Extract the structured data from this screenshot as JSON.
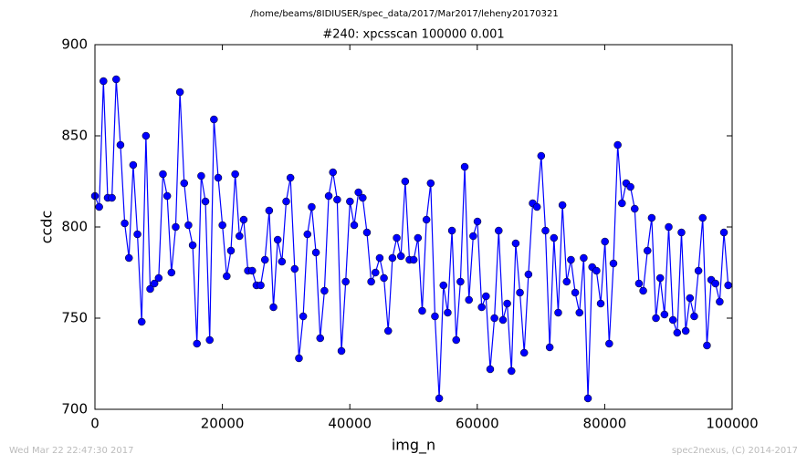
{
  "chart_data": {
    "type": "line",
    "suptitle": "/home/beams/8IDIUSER/spec_data/2017/Mar2017/leheny20170321",
    "title": "#240: xpcsscan 100000 0.001",
    "xlabel": "img_n",
    "ylabel": "ccdc",
    "footer_left": "Wed Mar 22 22:47:30 2017",
    "footer_right": "spec2nexus, (C) 2014-2017",
    "xlim": [
      0,
      100000
    ],
    "ylim": [
      700,
      900
    ],
    "xticks": [
      0,
      20000,
      40000,
      60000,
      80000,
      100000
    ],
    "yticks": [
      700,
      750,
      800,
      850,
      900
    ],
    "grid": false,
    "x": [
      0,
      667,
      1334,
      2001,
      2668,
      3335,
      4002,
      4669,
      5336,
      6003,
      6670,
      7337,
      8004,
      8671,
      9338,
      10005,
      10672,
      11339,
      12006,
      12673,
      13340,
      14007,
      14674,
      15341,
      16008,
      16675,
      17342,
      18009,
      18676,
      19343,
      20010,
      20677,
      21344,
      22011,
      22678,
      23345,
      24012,
      24679,
      25346,
      26013,
      26680,
      27347,
      28014,
      28681,
      29348,
      30015,
      30682,
      31349,
      32016,
      32683,
      33350,
      34017,
      34684,
      35351,
      36018,
      36685,
      37352,
      38019,
      38686,
      39353,
      40020,
      40687,
      41354,
      42021,
      42688,
      43355,
      44022,
      44689,
      45356,
      46023,
      46690,
      47357,
      48024,
      48691,
      49358,
      50025,
      50692,
      51359,
      52026,
      52693,
      53360,
      54027,
      54694,
      55361,
      56028,
      56695,
      57362,
      58029,
      58696,
      59363,
      60030,
      60697,
      61364,
      62031,
      62698,
      63365,
      64032,
      64699,
      65366,
      66033,
      66700,
      67367,
      68034,
      68701,
      69368,
      70035,
      70702,
      71369,
      72036,
      72703,
      73370,
      74037,
      74704,
      75371,
      76038,
      76705,
      77372,
      78039,
      78706,
      79373,
      80040,
      80707,
      81374,
      82041,
      82708,
      83375,
      84042,
      84709,
      85376,
      86043,
      86710,
      87377,
      88044,
      88711,
      89378,
      90045,
      90712,
      91379,
      92046,
      92713,
      93380,
      94047,
      94714,
      95381,
      96048,
      96715,
      97382,
      98049,
      98716,
      99383
    ],
    "series": [
      {
        "name": "ccdc",
        "color": "#0000ff",
        "values": [
          817,
          811,
          880,
          816,
          816,
          881,
          845,
          802,
          783,
          834,
          796,
          748,
          850,
          766,
          769,
          772,
          829,
          817,
          775,
          800,
          874,
          824,
          801,
          790,
          736,
          828,
          814,
          738,
          859,
          827,
          801,
          773,
          787,
          829,
          795,
          804,
          776,
          776,
          768,
          768,
          782,
          809,
          756,
          793,
          781,
          814,
          827,
          777,
          728,
          751,
          796,
          811,
          786,
          739,
          765,
          817,
          830,
          815,
          732,
          770,
          814,
          801,
          819,
          816,
          797,
          770,
          775,
          783,
          772,
          743,
          783,
          794,
          784,
          825,
          782,
          782,
          794,
          754,
          804,
          824,
          751,
          706,
          768,
          753,
          798,
          738,
          770,
          833,
          760,
          795,
          803,
          756,
          762,
          722,
          750,
          798,
          749,
          758,
          721,
          791,
          764,
          731,
          774,
          813,
          811,
          839,
          798,
          734,
          794,
          753,
          812,
          770,
          782,
          764,
          753,
          783,
          706,
          778,
          776,
          758,
          792,
          736,
          780,
          845,
          813,
          824,
          822,
          810,
          769,
          765,
          787,
          805,
          750,
          772,
          752,
          800,
          749,
          742,
          797,
          743,
          761,
          751,
          776,
          805,
          735,
          771,
          769,
          759,
          797,
          768
        ]
      }
    ]
  }
}
